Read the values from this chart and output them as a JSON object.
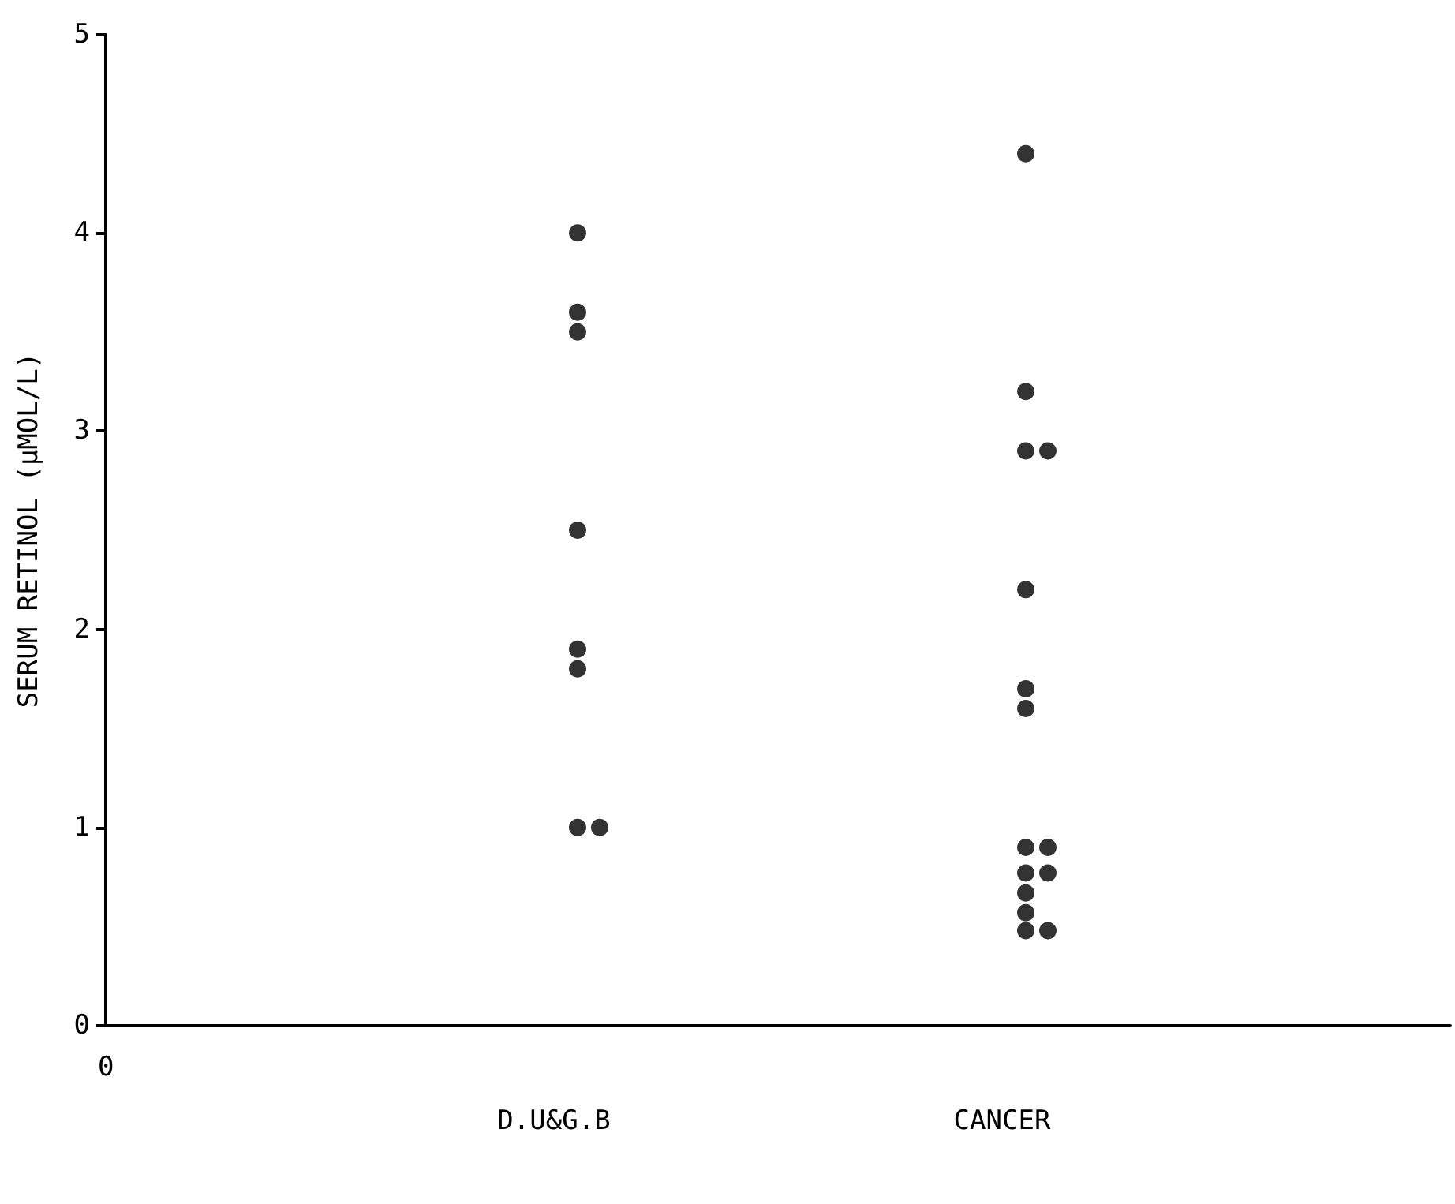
{
  "chart_data": {
    "type": "scatter",
    "ylabel": "SERUM RETINOL (µMOL/L)",
    "categories": [
      "D.U&G.B",
      "CANCER"
    ],
    "ylim": [
      0,
      5
    ],
    "yticks": [
      0,
      1,
      2,
      3,
      4,
      5
    ],
    "marker": "circle",
    "annotations": [
      "0"
    ],
    "series": [
      {
        "color": "#000000",
        "x": [
          "D.U&G.B",
          "D.U&G.B",
          "D.U&G.B",
          "D.U&G.B",
          "D.U&G.B",
          "D.U&G.B",
          "D.U&G.B",
          "D.U&G.B",
          "CANCER",
          "CANCER",
          "CANCER",
          "CANCER",
          "CANCER",
          "CANCER",
          "CANCER",
          "CANCER",
          "CANCER",
          "CANCER",
          "CANCER",
          "CANCER",
          "CANCER",
          "CANCER",
          "CANCER"
        ],
        "values": [
          4.0,
          3.6,
          3.5,
          2.5,
          1.9,
          1.8,
          1.0,
          1.0,
          4.4,
          3.2,
          2.9,
          2.9,
          2.2,
          1.7,
          1.6,
          0.9,
          0.9,
          0.77,
          0.77,
          0.67,
          0.57,
          0.48,
          0.48
        ]
      }
    ]
  }
}
